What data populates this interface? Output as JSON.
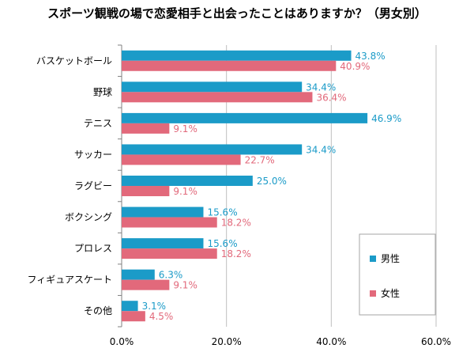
{
  "chart_data": {
    "type": "bar",
    "orientation": "horizontal",
    "title": "スポーツ観戦の場で恋愛相手と出会ったことはありますか？（男女別）",
    "categories": [
      "バスケットボール",
      "野球",
      "テニス",
      "サッカー",
      "ラグビー",
      "ボクシング",
      "プロレス",
      "フィギュアスケート",
      "その他"
    ],
    "series": [
      {
        "name": "男性",
        "color": "#1b9bc8",
        "values": [
          43.8,
          34.4,
          46.9,
          34.4,
          25.0,
          15.6,
          15.6,
          6.3,
          3.1
        ],
        "labels": [
          "43.8%",
          "34.4%",
          "46.9%",
          "34.4%",
          "25.0%",
          "15.6%",
          "15.6%",
          "6.3%",
          "3.1%"
        ]
      },
      {
        "name": "女性",
        "color": "#e2697b",
        "values": [
          40.9,
          36.4,
          9.1,
          22.7,
          9.1,
          18.2,
          18.2,
          9.1,
          4.5
        ],
        "labels": [
          "40.9%",
          "36.4%",
          "9.1%",
          "22.7%",
          "9.1%",
          "18.2%",
          "18.2%",
          "9.1%",
          "4.5%"
        ]
      }
    ],
    "xlim": [
      0,
      60
    ],
    "xticks": [
      0,
      20,
      40,
      60
    ],
    "xtick_labels": [
      "0.0%",
      "20.0%",
      "40.0%",
      "60.0%"
    ],
    "grid": true,
    "legend_position": "right"
  }
}
